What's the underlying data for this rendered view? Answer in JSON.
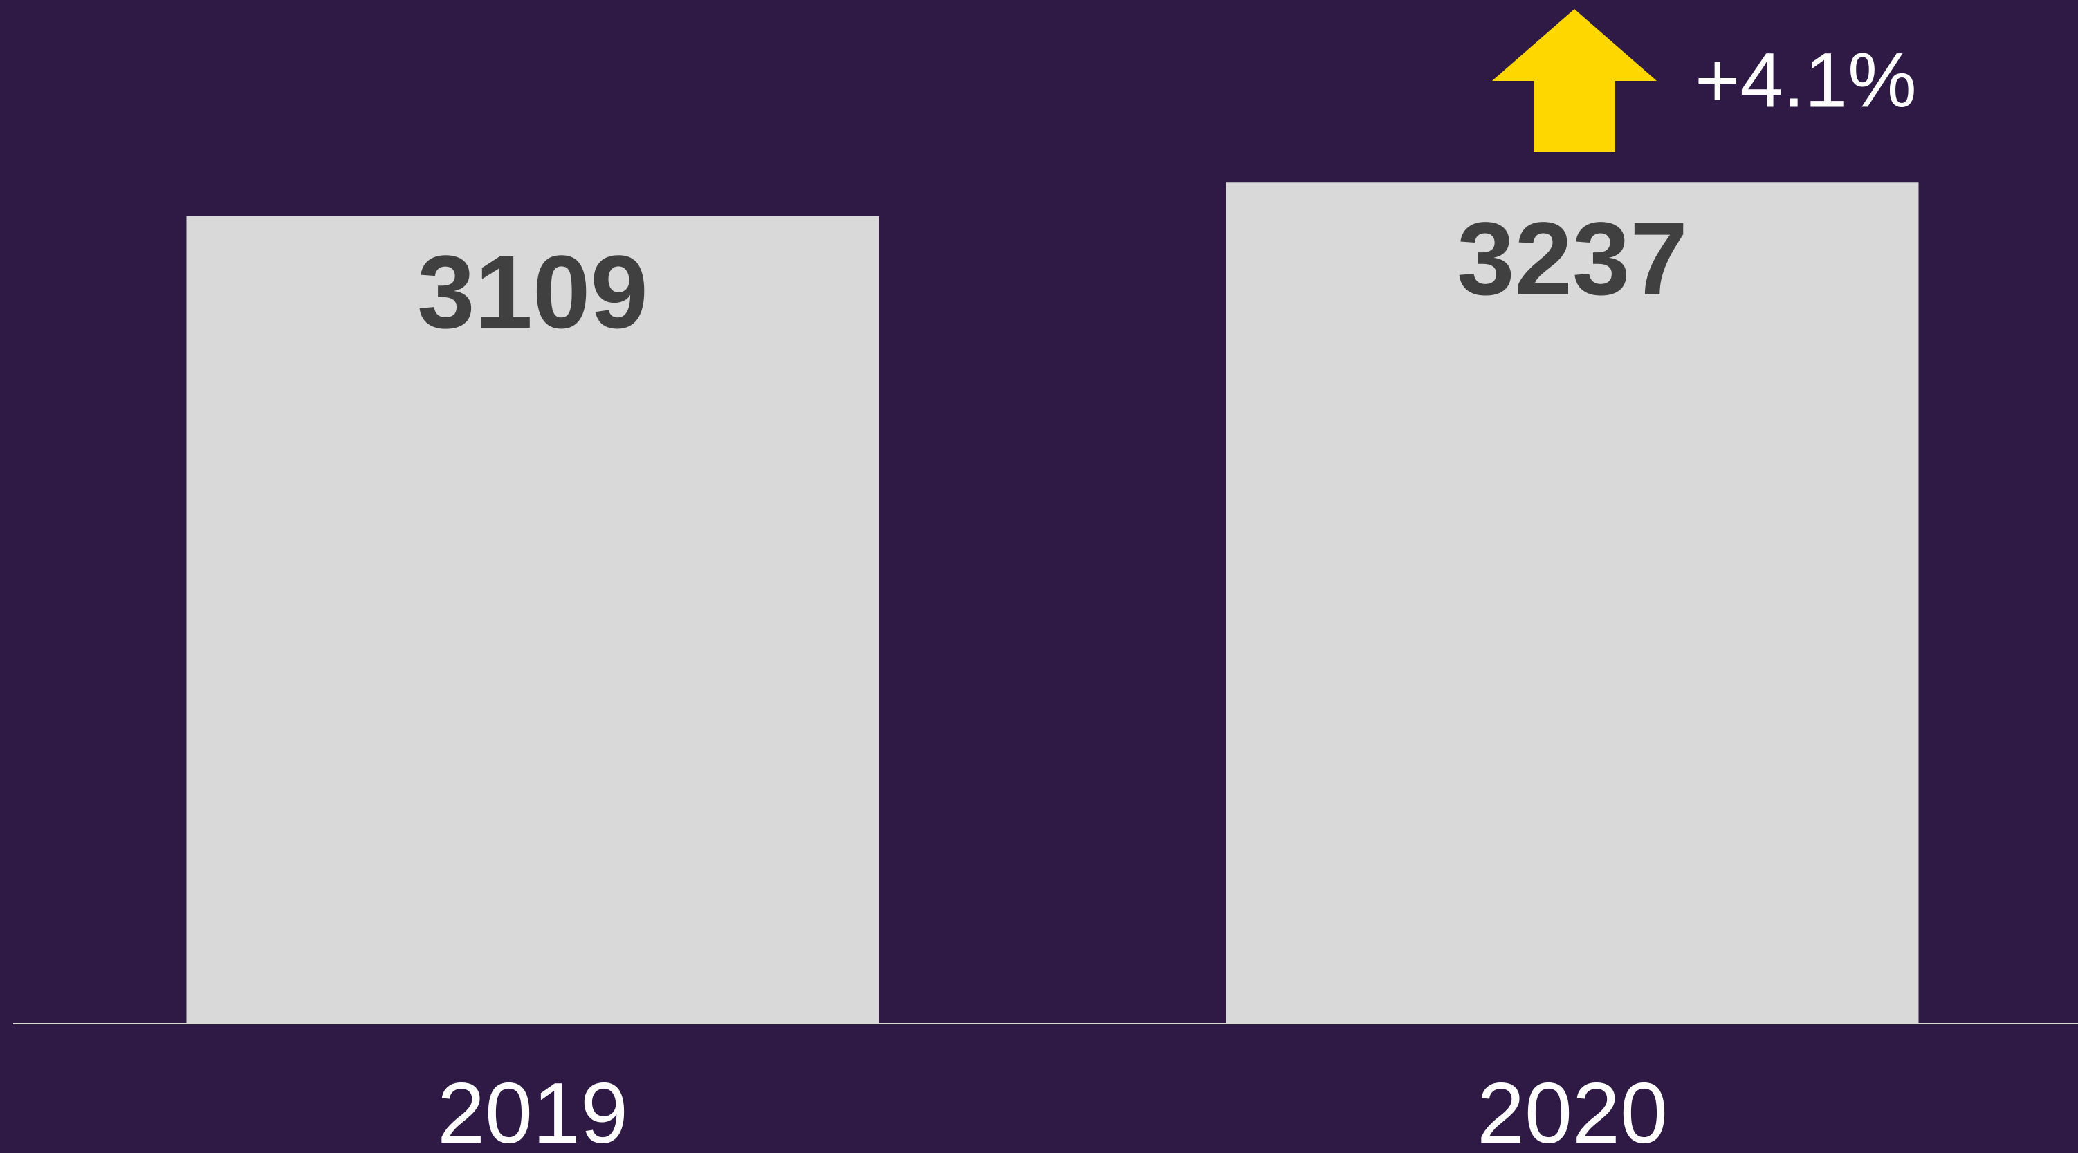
{
  "chart_data": {
    "type": "bar",
    "categories": [
      "2019",
      "2020"
    ],
    "values": [
      3109,
      3237
    ],
    "color": "#d9d9d9",
    "ylim": [
      0,
      3940
    ],
    "annotation": "+4.1%"
  }
}
